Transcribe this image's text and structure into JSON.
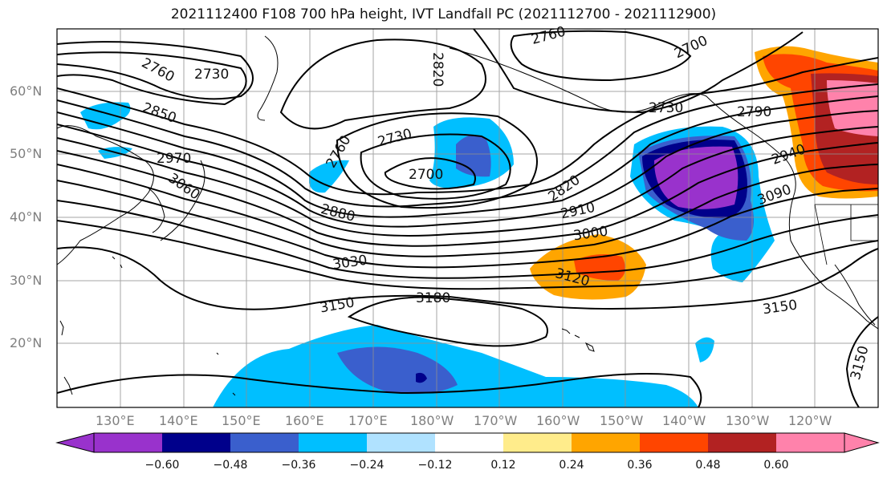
{
  "title": "2021112400 F108 700 hPa height, IVT Landfall PC (2021112700 - 2021112900)",
  "lat_labels": [
    "60°N",
    "50°N",
    "40°N",
    "30°N",
    "20°N"
  ],
  "lon_labels": [
    "130°E",
    "140°E",
    "150°E",
    "160°E",
    "170°E",
    "180°W",
    "170°W",
    "160°W",
    "150°W",
    "140°W",
    "130°W",
    "120°W"
  ],
  "contour_labels": [
    "2760",
    "2730",
    "2820",
    "2760",
    "2700",
    "2850",
    "2970",
    "3060",
    "2760",
    "2730",
    "2700",
    "2730",
    "2790",
    "2820",
    "2940",
    "2910",
    "2880",
    "3000",
    "3030",
    "3090",
    "3120",
    "3150",
    "3180",
    "3150",
    "3150"
  ],
  "colorbar": {
    "colors": [
      "#9932cc",
      "#00008b",
      "#3a5fcd",
      "#00bfff",
      "#b0e2ff",
      "#ffffff",
      "#ffec8b",
      "#ffa500",
      "#ff4500",
      "#b22222",
      "#ff82ab"
    ],
    "tick_labels": [
      "−0.60",
      "−0.48",
      "−0.36",
      "−0.24",
      "−0.12",
      "0.12",
      "0.24",
      "0.36",
      "0.48",
      "0.60"
    ]
  }
}
